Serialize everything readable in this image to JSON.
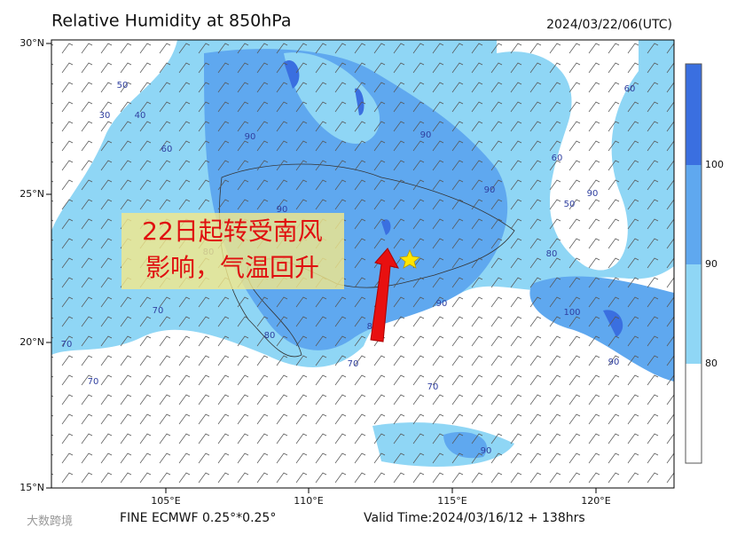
{
  "header": {
    "title": "Relative Humidity at 850hPa",
    "date": "2024/03/22/06(UTC)"
  },
  "annotation": {
    "lines": [
      "22日起转受南风",
      "影响，气温回升"
    ]
  },
  "map": {
    "lat_labels": [
      "30°N",
      "25°N",
      "20°N",
      "15°N"
    ],
    "lon_labels": [
      "105°E",
      "110°E",
      "115°E",
      "120°E"
    ],
    "contour_labels": [
      "50",
      "30",
      "40",
      "60",
      "90",
      "90",
      "90",
      "80",
      "90",
      "70",
      "80",
      "70",
      "80",
      "90",
      "70",
      "70",
      "60",
      "90",
      "100",
      "90",
      "50",
      "80",
      "60",
      "90",
      "70"
    ]
  },
  "colorbar": {
    "ticks": [
      "100",
      "90",
      "80"
    ]
  },
  "footer": {
    "model": "FINE ECMWF 0.25°*0.25°",
    "valid": "Valid Time:2024/03/16/12 + 138hrs",
    "watermark": "大数跨境"
  }
}
